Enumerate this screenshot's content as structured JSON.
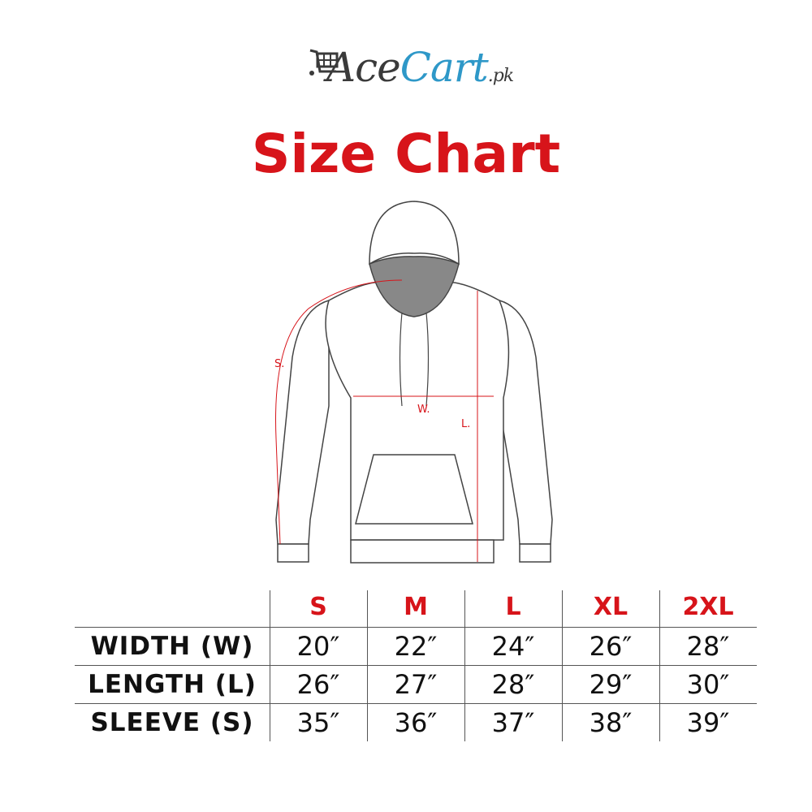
{
  "brand": {
    "name_part1": "Ace",
    "name_part2": "Cart",
    "suffix": ".pk",
    "colors": {
      "dark": "#3a3a3a",
      "blue": "#2e98c8"
    },
    "icon": "shopping-cart-icon"
  },
  "title": "Size Chart",
  "accent_color": "#d7141a",
  "diagram": {
    "labels": {
      "sleeve": "S.",
      "width": "W.",
      "length": "L."
    }
  },
  "table": {
    "sizes": [
      "S",
      "M",
      "L",
      "XL",
      "2XL"
    ],
    "rows": [
      {
        "label": "WIDTH (W)",
        "values": [
          "20″",
          "22″",
          "24″",
          "26″",
          "28″"
        ]
      },
      {
        "label": "LENGTH (L)",
        "values": [
          "26″",
          "27″",
          "28″",
          "29″",
          "30″"
        ]
      },
      {
        "label": "SLEEVE (S)",
        "values": [
          "35″",
          "36″",
          "37″",
          "38″",
          "39″"
        ]
      }
    ]
  }
}
